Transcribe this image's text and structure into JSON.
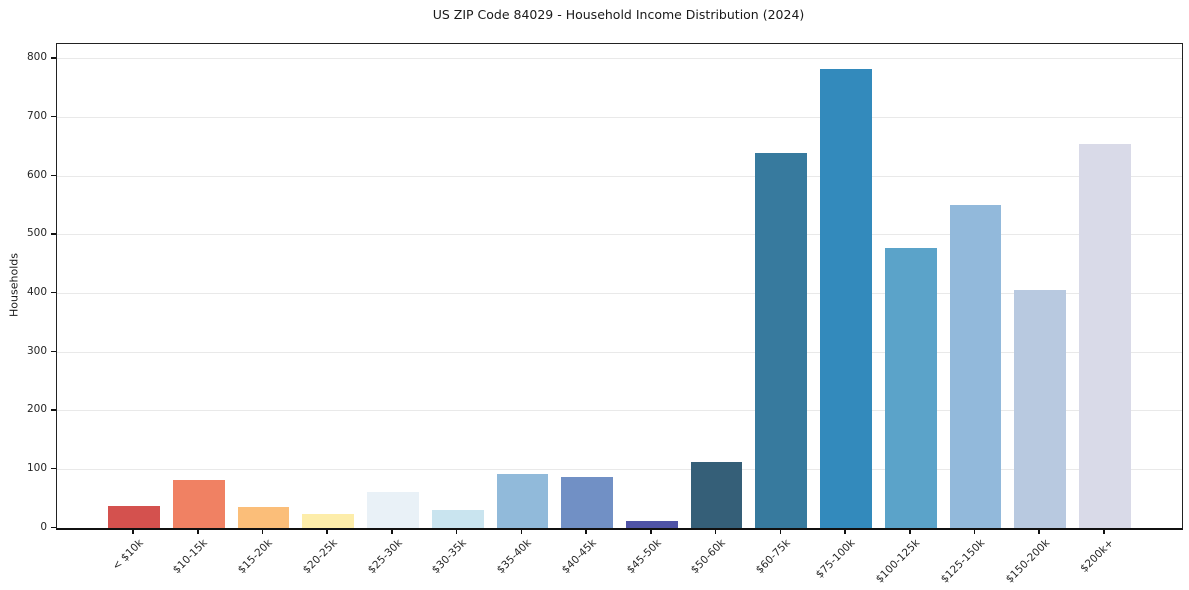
{
  "chart_data": {
    "type": "bar",
    "title": "US ZIP Code 84029 - Household Income Distribution (2024)",
    "xlabel": "",
    "ylabel": "Households",
    "categories": [
      "< $10k",
      "$10-15k",
      "$15-20k",
      "$20-25k",
      "$25-30k",
      "$30-35k",
      "$35-40k",
      "$40-45k",
      "$45-50k",
      "$50-60k",
      "$60-75k",
      "$75-100k",
      "$100-125k",
      "$125-150k",
      "$150-200k",
      "$200k+"
    ],
    "values": [
      38,
      81,
      36,
      24,
      61,
      31,
      92,
      87,
      12,
      113,
      640,
      783,
      478,
      551,
      405,
      654
    ],
    "bar_colors": [
      "#d4514e",
      "#f08163",
      "#fbbe79",
      "#fdedaa",
      "#e9f1f7",
      "#c9e4ef",
      "#91bada",
      "#7190c5",
      "#4f53a6",
      "#355f78",
      "#377a9e",
      "#338abc",
      "#5ba3c9",
      "#92b9db",
      "#b8c9e0",
      "#d9dae8"
    ],
    "yticks": [
      0,
      100,
      200,
      300,
      400,
      500,
      600,
      700,
      800
    ],
    "ylim": [
      0,
      825
    ],
    "grid": "horizontal",
    "gridline_color": "#e9e9e9",
    "background_color": "#ffffff",
    "legend": "none"
  }
}
